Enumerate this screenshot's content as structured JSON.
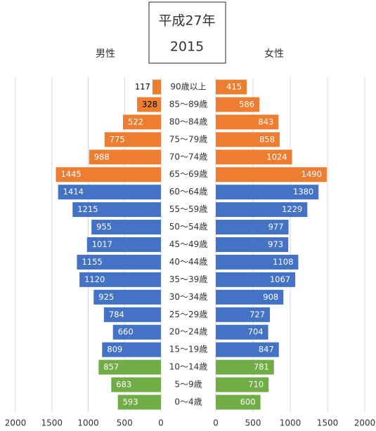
{
  "chart_data": {
    "type": "bar",
    "title": "平成27年",
    "subtitle": "2015",
    "categories": [
      "90歳以上",
      "85〜89歳",
      "80〜84歳",
      "75〜79歳",
      "70〜74歳",
      "65〜69歳",
      "60〜64歳",
      "55〜59歳",
      "50〜54歳",
      "45〜49歳",
      "40〜44歳",
      "35〜39歳",
      "30〜34歳",
      "25〜29歳",
      "20〜24歳",
      "15〜19歳",
      "10〜14歳",
      "5〜9歳",
      "0〜4歳"
    ],
    "series": [
      {
        "name": "男性",
        "values": [
          117,
          328,
          522,
          775,
          988,
          1445,
          1414,
          1215,
          955,
          1017,
          1155,
          1120,
          925,
          784,
          660,
          809,
          857,
          683,
          593
        ]
      },
      {
        "name": "女性",
        "values": [
          415,
          586,
          843,
          858,
          1024,
          1490,
          1380,
          1229,
          977,
          973,
          1108,
          1067,
          908,
          727,
          704,
          847,
          781,
          710,
          600
        ]
      }
    ],
    "bar_colors": [
      "#ed7d31",
      "#ed7d31",
      "#ed7d31",
      "#ed7d31",
      "#ed7d31",
      "#ed7d31",
      "#4472c4",
      "#4472c4",
      "#4472c4",
      "#4472c4",
      "#4472c4",
      "#4472c4",
      "#4472c4",
      "#4472c4",
      "#4472c4",
      "#4472c4",
      "#70ad47",
      "#70ad47",
      "#70ad47"
    ],
    "xlim": [
      0,
      2000
    ],
    "xticks": [
      0,
      500,
      1000,
      1500,
      2000
    ],
    "grid": true
  }
}
